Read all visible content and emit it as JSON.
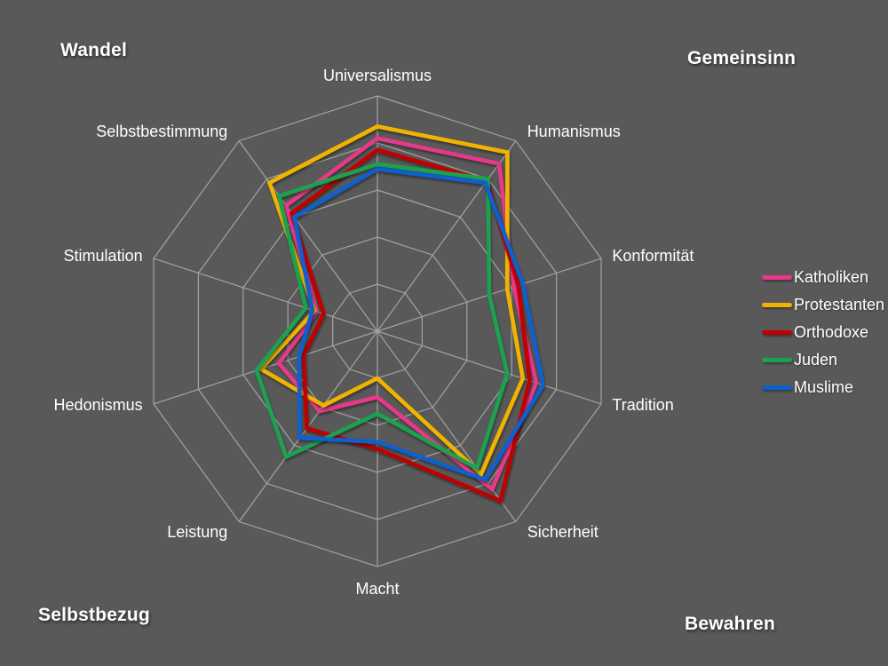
{
  "background_color": "#595959",
  "grid_color": "#a3a3a3",
  "text_color": "#ffffff",
  "corner_labels": {
    "top_left": "Wandel",
    "top_right": "Gemeinsinn",
    "bottom_left": "Selbstbezug",
    "bottom_right": "Bewahren"
  },
  "chart_data": {
    "type": "radar",
    "rings": 5,
    "value_max": 100,
    "grid": true,
    "legend_position": "right",
    "categories": [
      "Universalismus",
      "Humanismus",
      "Konformität",
      "Tradition",
      "Sicherheit",
      "Macht",
      "Leistung",
      "Hedonismus",
      "Stimulation",
      "Selbstbestimmung"
    ],
    "series": [
      {
        "name": "Katholiken",
        "color": "#e9388a",
        "values": [
          82,
          88,
          61,
          71,
          83,
          28,
          42,
          44,
          27,
          66
        ]
      },
      {
        "name": "Protestanten",
        "color": "#f0b400",
        "values": [
          87,
          94,
          58,
          65,
          75,
          20,
          39,
          52,
          28,
          78
        ]
      },
      {
        "name": "Orthodoxe",
        "color": "#c00000",
        "values": [
          77,
          79,
          63,
          68,
          89,
          50,
          51,
          33,
          24,
          62
        ]
      },
      {
        "name": "Juden",
        "color": "#1ca24f",
        "values": [
          71,
          80,
          50,
          58,
          72,
          35,
          66,
          54,
          32,
          71
        ]
      },
      {
        "name": "Muslime",
        "color": "#0c60ce",
        "values": [
          69,
          78,
          65,
          74,
          78,
          47,
          56,
          35,
          29,
          60
        ]
      }
    ]
  }
}
